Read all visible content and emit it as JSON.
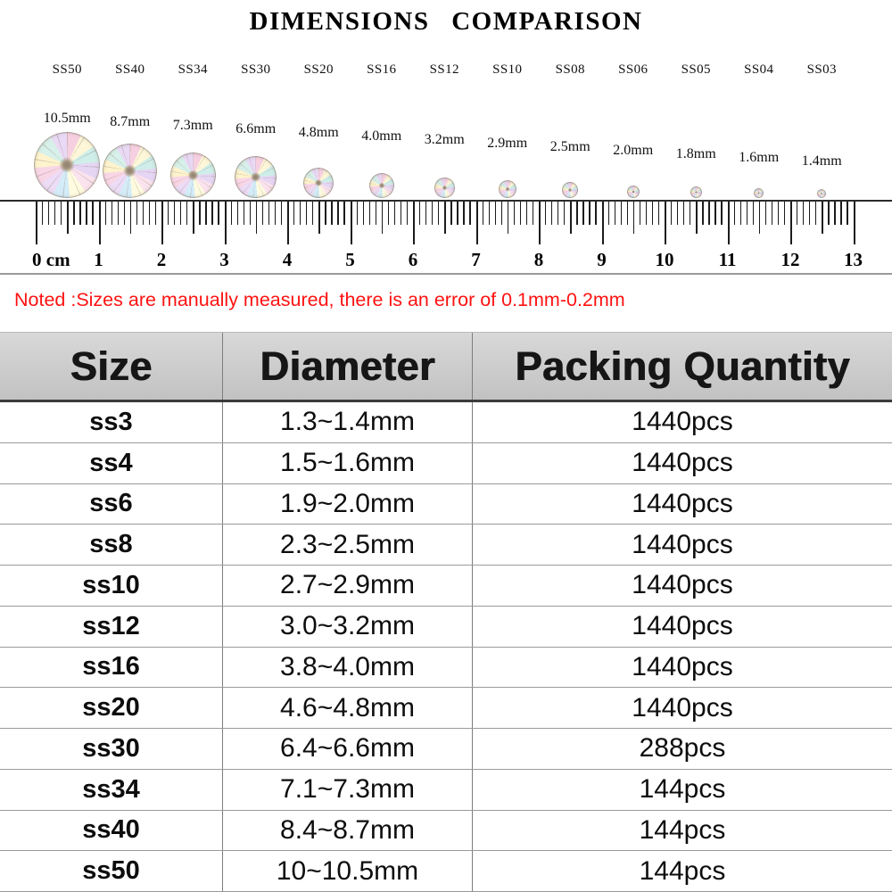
{
  "title": "DIMENSIONS COMPARISON",
  "note": "Noted :Sizes are manually measured, there is an error of 0.1mm-0.2mm",
  "colors": {
    "note": "#ff1212",
    "ink": "#111111",
    "grid": "#9a9a9a",
    "divider": "#7d7d7d",
    "tick": "#1c1c1c",
    "header_bg_top": "#d8d8d8",
    "header_bg_bottom": "#c2c2c2"
  },
  "comparison": {
    "items": [
      {
        "size": "SS50",
        "mm_label": "10.5mm",
        "mm": 10.5
      },
      {
        "size": "SS40",
        "mm_label": "8.7mm",
        "mm": 8.7
      },
      {
        "size": "SS34",
        "mm_label": "7.3mm",
        "mm": 7.3
      },
      {
        "size": "SS30",
        "mm_label": "6.6mm",
        "mm": 6.6
      },
      {
        "size": "SS20",
        "mm_label": "4.8mm",
        "mm": 4.8
      },
      {
        "size": "SS16",
        "mm_label": "4.0mm",
        "mm": 4.0
      },
      {
        "size": "SS12",
        "mm_label": "3.2mm",
        "mm": 3.2
      },
      {
        "size": "SS10",
        "mm_label": "2.9mm",
        "mm": 2.9
      },
      {
        "size": "SS08",
        "mm_label": "2.5mm",
        "mm": 2.5
      },
      {
        "size": "SS06",
        "mm_label": "2.0mm",
        "mm": 2.0
      },
      {
        "size": "SS05",
        "mm_label": "1.8mm",
        "mm": 1.8
      },
      {
        "size": "SS04",
        "mm_label": "1.6mm",
        "mm": 1.6
      },
      {
        "size": "SS03",
        "mm_label": "1.4mm",
        "mm": 1.4
      }
    ]
  },
  "ruler": {
    "zero_label": "0 cm",
    "cm_numbers": [
      "1",
      "2",
      "3",
      "4",
      "5",
      "6",
      "7",
      "8",
      "9",
      "10",
      "11",
      "12",
      "13"
    ],
    "cm_count": 13,
    "ticks_per_cm": 10
  },
  "table": {
    "headers": [
      "Size",
      "Diameter",
      "Packing Quantity"
    ],
    "rows": [
      [
        "ss3",
        "1.3~1.4mm",
        "1440pcs"
      ],
      [
        "ss4",
        "1.5~1.6mm",
        "1440pcs"
      ],
      [
        "ss6",
        "1.9~2.0mm",
        "1440pcs"
      ],
      [
        "ss8",
        "2.3~2.5mm",
        "1440pcs"
      ],
      [
        "ss10",
        "2.7~2.9mm",
        "1440pcs"
      ],
      [
        "ss12",
        "3.0~3.2mm",
        "1440pcs"
      ],
      [
        "ss16",
        "3.8~4.0mm",
        "1440pcs"
      ],
      [
        "ss20",
        "4.6~4.8mm",
        "1440pcs"
      ],
      [
        "ss30",
        "6.4~6.6mm",
        "288pcs"
      ],
      [
        "ss34",
        "7.1~7.3mm",
        "144pcs"
      ],
      [
        "ss40",
        "8.4~8.7mm",
        "144pcs"
      ],
      [
        "ss50",
        "10~10.5mm",
        "144pcs"
      ]
    ]
  },
  "chart_data": {
    "type": "table",
    "title": "DIMENSIONS COMPARISON",
    "columns": [
      "Size",
      "Diameter",
      "Packing Quantity"
    ],
    "rows": [
      [
        "ss3",
        "1.3~1.4mm",
        "1440pcs"
      ],
      [
        "ss4",
        "1.5~1.6mm",
        "1440pcs"
      ],
      [
        "ss6",
        "1.9~2.0mm",
        "1440pcs"
      ],
      [
        "ss8",
        "2.3~2.5mm",
        "1440pcs"
      ],
      [
        "ss10",
        "2.7~2.9mm",
        "1440pcs"
      ],
      [
        "ss12",
        "3.0~3.2mm",
        "1440pcs"
      ],
      [
        "ss16",
        "3.8~4.0mm",
        "1440pcs"
      ],
      [
        "ss20",
        "4.6~4.8mm",
        "1440pcs"
      ],
      [
        "ss30",
        "6.4~6.6mm",
        "288pcs"
      ],
      [
        "ss34",
        "7.1~7.3mm",
        "144pcs"
      ],
      [
        "ss40",
        "8.4~8.7mm",
        "144pcs"
      ],
      [
        "ss50",
        "10~10.5mm",
        "144pcs"
      ]
    ],
    "size_comparison": {
      "labels": [
        "SS50",
        "SS40",
        "SS34",
        "SS30",
        "SS20",
        "SS16",
        "SS12",
        "SS10",
        "SS08",
        "SS06",
        "SS05",
        "SS04",
        "SS03"
      ],
      "diameters_mm": [
        10.5,
        8.7,
        7.3,
        6.6,
        4.8,
        4.0,
        3.2,
        2.9,
        2.5,
        2.0,
        1.8,
        1.6,
        1.4
      ]
    },
    "ruler": {
      "unit": "cm",
      "range": [
        0,
        13
      ]
    },
    "annotation": "Noted :Sizes are manually measured, there is an error of 0.1mm-0.2mm"
  }
}
